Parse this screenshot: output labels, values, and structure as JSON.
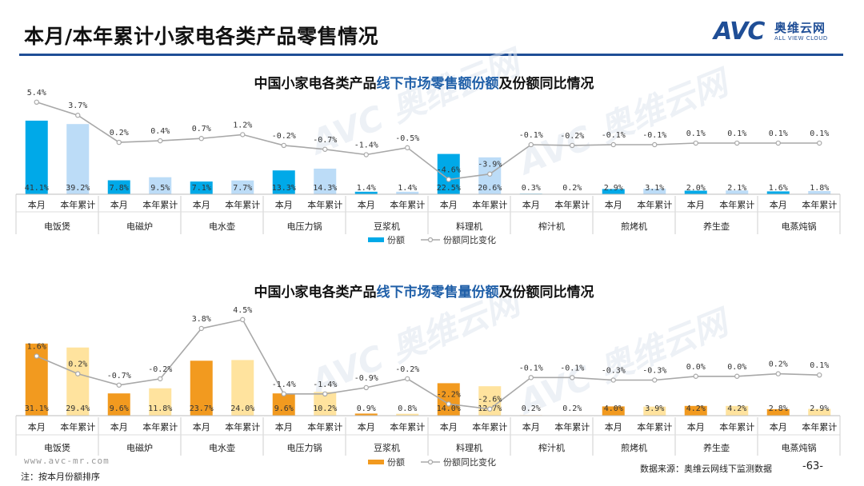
{
  "page": {
    "title": "本月/本年累计小家电各类产品零售情况",
    "logo_text": "AVC",
    "logo_cn": "奥维云网",
    "logo_en": "ALL VIEW CLOUD",
    "site": "www.avc-mr.com",
    "note": "注：按本月份额排序",
    "source": "数据来源：奥维云网线下监测数据",
    "page_number": "-63-",
    "colors": {
      "accent": "#1f4e96",
      "title_blue": "#1f5fa8",
      "blue_dark": "#00a9e8",
      "blue_light": "#bcdcf7",
      "orange_dark": "#f29a1f",
      "orange_light": "#ffe39e",
      "line": "#a8a8a8"
    }
  },
  "chart_data": [
    {
      "type": "bar",
      "title_parts": [
        "中国小家电各类产品",
        "线下市场零售额份额",
        "及份额同比情况"
      ],
      "categories": [
        "电饭煲",
        "电磁炉",
        "电水壶",
        "电压力锅",
        "豆浆机",
        "料理机",
        "榨汁机",
        "煎烤机",
        "养生壶",
        "电蒸炖锅"
      ],
      "periods": [
        "本月",
        "本年累计"
      ],
      "series": [
        {
          "name": "份额",
          "unit": "%",
          "values": [
            [
              41.1,
              39.2
            ],
            [
              7.8,
              9.5
            ],
            [
              7.1,
              7.7
            ],
            [
              13.3,
              14.3
            ],
            [
              1.4,
              1.4
            ],
            [
              22.5,
              20.6
            ],
            [
              0.3,
              0.2
            ],
            [
              2.9,
              3.1
            ],
            [
              2.0,
              2.1
            ],
            [
              1.6,
              1.8
            ]
          ],
          "labels": [
            [
              "41.1%",
              "39.2%"
            ],
            [
              "7.8%",
              "9.5%"
            ],
            [
              "7.1%",
              "7.7%"
            ],
            [
              "13.3%",
              "14.3%"
            ],
            [
              "1.4%",
              "1.4%"
            ],
            [
              "22.5%",
              "20.6%"
            ],
            [
              "0.3%",
              "0.2%"
            ],
            [
              "2.9%",
              "3.1%"
            ],
            [
              "2.0%",
              "2.1%"
            ],
            [
              "1.6%",
              "1.8%"
            ]
          ]
        },
        {
          "name": "份额同比变化",
          "type": "line",
          "unit": "%",
          "values": [
            [
              5.4,
              3.7
            ],
            [
              0.2,
              0.4
            ],
            [
              0.7,
              1.2
            ],
            [
              -0.2,
              -0.7
            ],
            [
              -1.4,
              -0.5
            ],
            [
              -4.6,
              -3.9
            ],
            [
              -0.1,
              -0.2
            ],
            [
              -0.1,
              -0.1
            ],
            [
              0.1,
              0.1
            ],
            [
              0.1,
              0.1
            ]
          ],
          "labels": [
            [
              "5.4%",
              "3.7%"
            ],
            [
              "0.2%",
              "0.4%"
            ],
            [
              "0.7%",
              "1.2%"
            ],
            [
              "-0.2%",
              "-0.7%"
            ],
            [
              "-1.4%",
              "-0.5%"
            ],
            [
              "-4.6%",
              "-3.9%"
            ],
            [
              "-0.1%",
              "-0.2%"
            ],
            [
              "-0.1%",
              "-0.1%"
            ],
            [
              "0.1%",
              "0.1%"
            ],
            [
              "0.1%",
              "0.1%"
            ]
          ]
        }
      ],
      "legend": [
        "份额",
        "份额同比变化"
      ],
      "bar_ylim": [
        0,
        50
      ],
      "line_ylim": [
        -6,
        6
      ]
    },
    {
      "type": "bar",
      "title_parts": [
        "中国小家电各类产品",
        "线下市场零售量份额",
        "及份额同比情况"
      ],
      "categories": [
        "电饭煲",
        "电磁炉",
        "电水壶",
        "电压力锅",
        "豆浆机",
        "料理机",
        "榨汁机",
        "煎烤机",
        "养生壶",
        "电蒸炖锅"
      ],
      "periods": [
        "本月",
        "本年累计"
      ],
      "series": [
        {
          "name": "份额",
          "unit": "%",
          "values": [
            [
              31.1,
              29.4
            ],
            [
              9.6,
              11.8
            ],
            [
              23.7,
              24.0
            ],
            [
              9.6,
              10.2
            ],
            [
              0.9,
              0.8
            ],
            [
              14.0,
              12.7
            ],
            [
              0.2,
              0.2
            ],
            [
              4.0,
              3.9
            ],
            [
              4.2,
              4.2
            ],
            [
              2.8,
              2.9
            ]
          ],
          "labels": [
            [
              "31.1%",
              "29.4%"
            ],
            [
              "9.6%",
              "11.8%"
            ],
            [
              "23.7%",
              "24.0%"
            ],
            [
              "9.6%",
              "10.2%"
            ],
            [
              "0.9%",
              "0.8%"
            ],
            [
              "14.0%",
              "12.7%"
            ],
            [
              "0.2%",
              "0.2%"
            ],
            [
              "4.0%",
              "3.9%"
            ],
            [
              "4.2%",
              "4.2%"
            ],
            [
              "2.8%",
              "2.9%"
            ]
          ]
        },
        {
          "name": "份额同比变化",
          "type": "line",
          "unit": "%",
          "values": [
            [
              1.6,
              0.2
            ],
            [
              -0.7,
              -0.2
            ],
            [
              3.8,
              4.5
            ],
            [
              -1.4,
              -1.4
            ],
            [
              -0.9,
              -0.2
            ],
            [
              -2.2,
              -2.6
            ],
            [
              -0.1,
              -0.1
            ],
            [
              -0.3,
              -0.3
            ],
            [
              0.0,
              0.0
            ],
            [
              0.2,
              0.1
            ]
          ],
          "labels": [
            [
              "1.6%",
              "0.2%"
            ],
            [
              "-0.7%",
              "-0.2%"
            ],
            [
              "3.8%",
              "4.5%"
            ],
            [
              "-1.4%",
              "-1.4%"
            ],
            [
              "-0.9%",
              "-0.2%"
            ],
            [
              "-2.2%",
              "-2.6%"
            ],
            [
              "-0.1%",
              "-0.1%"
            ],
            [
              "-0.3%",
              "-0.3%"
            ],
            [
              "0.0%",
              "0.0%"
            ],
            [
              "0.2%",
              "0.1%"
            ]
          ]
        }
      ],
      "legend": [
        "份额",
        "份额同比变化"
      ],
      "bar_ylim": [
        0,
        40
      ],
      "line_ylim": [
        -3,
        5
      ]
    }
  ]
}
